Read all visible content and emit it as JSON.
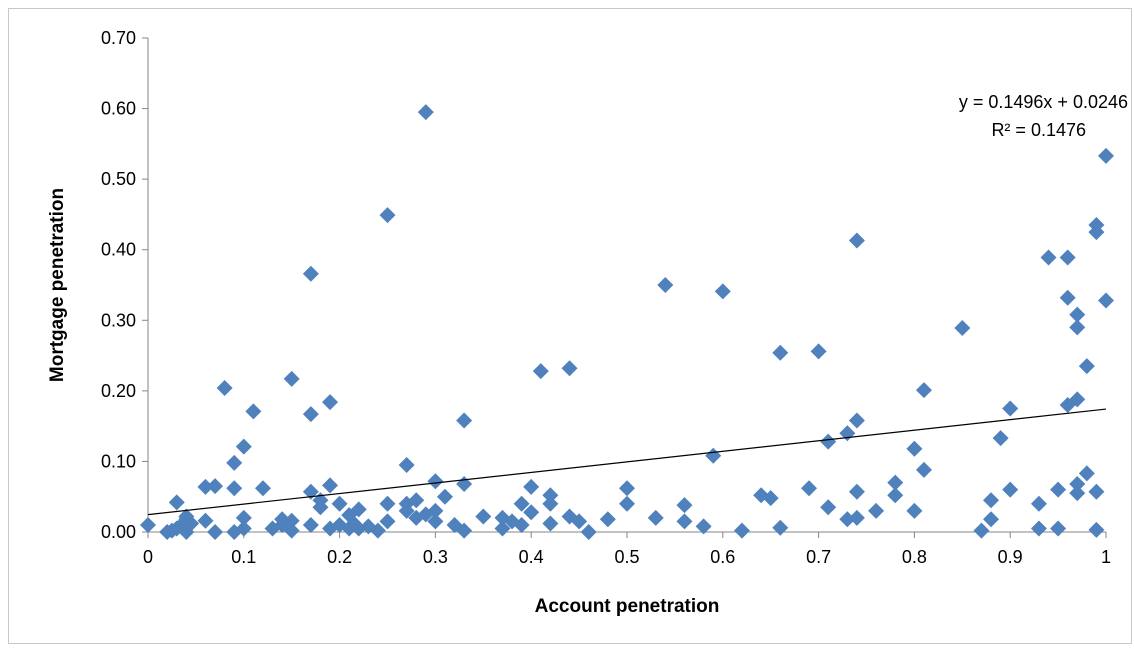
{
  "chart_data": {
    "type": "scatter",
    "title": "",
    "xlabel": "Account penetration",
    "ylabel": "Mortgage penetration",
    "xlim": [
      0,
      1
    ],
    "ylim": [
      0,
      0.7
    ],
    "x_ticks": [
      "0",
      "0.1",
      "0.2",
      "0.3",
      "0.4",
      "0.5",
      "0.6",
      "0.7",
      "0.8",
      "0.9",
      "1"
    ],
    "y_ticks": [
      "0.00",
      "0.10",
      "0.20",
      "0.30",
      "0.40",
      "0.50",
      "0.60",
      "0.70"
    ],
    "grid": false,
    "marker_color": "#4F81BD",
    "trendline": {
      "slope": 0.1496,
      "intercept": 0.0246,
      "equation": "y = 0.1496x + 0.0246",
      "r2": "R² = 0.1476",
      "color": "#000000"
    },
    "points": [
      [
        0.0,
        0.01
      ],
      [
        0.02,
        0.0
      ],
      [
        0.025,
        0.002
      ],
      [
        0.03,
        0.042
      ],
      [
        0.03,
        0.005
      ],
      [
        0.035,
        0.01
      ],
      [
        0.04,
        0.018
      ],
      [
        0.04,
        0.022
      ],
      [
        0.04,
        0.0
      ],
      [
        0.045,
        0.012
      ],
      [
        0.06,
        0.064
      ],
      [
        0.06,
        0.016
      ],
      [
        0.07,
        0.065
      ],
      [
        0.07,
        0.0
      ],
      [
        0.08,
        0.204
      ],
      [
        0.09,
        0.062
      ],
      [
        0.09,
        0.098
      ],
      [
        0.09,
        0.0
      ],
      [
        0.1,
        0.121
      ],
      [
        0.1,
        0.02
      ],
      [
        0.1,
        0.005
      ],
      [
        0.11,
        0.171
      ],
      [
        0.12,
        0.062
      ],
      [
        0.13,
        0.005
      ],
      [
        0.14,
        0.018
      ],
      [
        0.14,
        0.01
      ],
      [
        0.15,
        0.217
      ],
      [
        0.15,
        0.016
      ],
      [
        0.15,
        0.002
      ],
      [
        0.17,
        0.366
      ],
      [
        0.17,
        0.167
      ],
      [
        0.17,
        0.057
      ],
      [
        0.17,
        0.01
      ],
      [
        0.18,
        0.045
      ],
      [
        0.18,
        0.035
      ],
      [
        0.19,
        0.184
      ],
      [
        0.19,
        0.066
      ],
      [
        0.19,
        0.005
      ],
      [
        0.2,
        0.04
      ],
      [
        0.2,
        0.01
      ],
      [
        0.21,
        0.024
      ],
      [
        0.21,
        0.005
      ],
      [
        0.215,
        0.012
      ],
      [
        0.22,
        0.032
      ],
      [
        0.22,
        0.005
      ],
      [
        0.23,
        0.008
      ],
      [
        0.24,
        0.002
      ],
      [
        0.25,
        0.449
      ],
      [
        0.25,
        0.04
      ],
      [
        0.25,
        0.015
      ],
      [
        0.27,
        0.095
      ],
      [
        0.27,
        0.04
      ],
      [
        0.27,
        0.03
      ],
      [
        0.28,
        0.045
      ],
      [
        0.28,
        0.02
      ],
      [
        0.29,
        0.595
      ],
      [
        0.29,
        0.025
      ],
      [
        0.3,
        0.072
      ],
      [
        0.3,
        0.03
      ],
      [
        0.3,
        0.015
      ],
      [
        0.31,
        0.05
      ],
      [
        0.32,
        0.01
      ],
      [
        0.33,
        0.158
      ],
      [
        0.33,
        0.068
      ],
      [
        0.33,
        0.002
      ],
      [
        0.35,
        0.022
      ],
      [
        0.37,
        0.02
      ],
      [
        0.37,
        0.005
      ],
      [
        0.38,
        0.015
      ],
      [
        0.39,
        0.04
      ],
      [
        0.39,
        0.01
      ],
      [
        0.4,
        0.064
      ],
      [
        0.4,
        0.028
      ],
      [
        0.41,
        0.228
      ],
      [
        0.42,
        0.052
      ],
      [
        0.42,
        0.04
      ],
      [
        0.42,
        0.012
      ],
      [
        0.44,
        0.232
      ],
      [
        0.44,
        0.022
      ],
      [
        0.45,
        0.015
      ],
      [
        0.46,
        0.0
      ],
      [
        0.48,
        0.018
      ],
      [
        0.5,
        0.062
      ],
      [
        0.5,
        0.04
      ],
      [
        0.53,
        0.02
      ],
      [
        0.54,
        0.35
      ],
      [
        0.56,
        0.038
      ],
      [
        0.56,
        0.015
      ],
      [
        0.58,
        0.008
      ],
      [
        0.59,
        0.108
      ],
      [
        0.6,
        0.341
      ],
      [
        0.62,
        0.002
      ],
      [
        0.64,
        0.052
      ],
      [
        0.65,
        0.048
      ],
      [
        0.66,
        0.254
      ],
      [
        0.66,
        0.006
      ],
      [
        0.69,
        0.062
      ],
      [
        0.7,
        0.256
      ],
      [
        0.71,
        0.128
      ],
      [
        0.71,
        0.035
      ],
      [
        0.73,
        0.14
      ],
      [
        0.73,
        0.018
      ],
      [
        0.74,
        0.413
      ],
      [
        0.74,
        0.158
      ],
      [
        0.74,
        0.057
      ],
      [
        0.74,
        0.02
      ],
      [
        0.76,
        0.03
      ],
      [
        0.78,
        0.07
      ],
      [
        0.78,
        0.052
      ],
      [
        0.8,
        0.118
      ],
      [
        0.8,
        0.03
      ],
      [
        0.81,
        0.201
      ],
      [
        0.81,
        0.088
      ],
      [
        0.85,
        0.289
      ],
      [
        0.87,
        0.002
      ],
      [
        0.88,
        0.045
      ],
      [
        0.88,
        0.018
      ],
      [
        0.89,
        0.133
      ],
      [
        0.9,
        0.175
      ],
      [
        0.9,
        0.06
      ],
      [
        0.93,
        0.04
      ],
      [
        0.93,
        0.005
      ],
      [
        0.94,
        0.389
      ],
      [
        0.95,
        0.06
      ],
      [
        0.95,
        0.005
      ],
      [
        0.96,
        0.389
      ],
      [
        0.96,
        0.332
      ],
      [
        0.96,
        0.18
      ],
      [
        0.97,
        0.308
      ],
      [
        0.97,
        0.29
      ],
      [
        0.97,
        0.188
      ],
      [
        0.97,
        0.068
      ],
      [
        0.97,
        0.055
      ],
      [
        0.98,
        0.235
      ],
      [
        0.98,
        0.083
      ],
      [
        0.99,
        0.435
      ],
      [
        0.99,
        0.425
      ],
      [
        0.99,
        0.057
      ],
      [
        0.99,
        0.003
      ],
      [
        1.0,
        0.533
      ],
      [
        1.0,
        0.328
      ]
    ]
  }
}
